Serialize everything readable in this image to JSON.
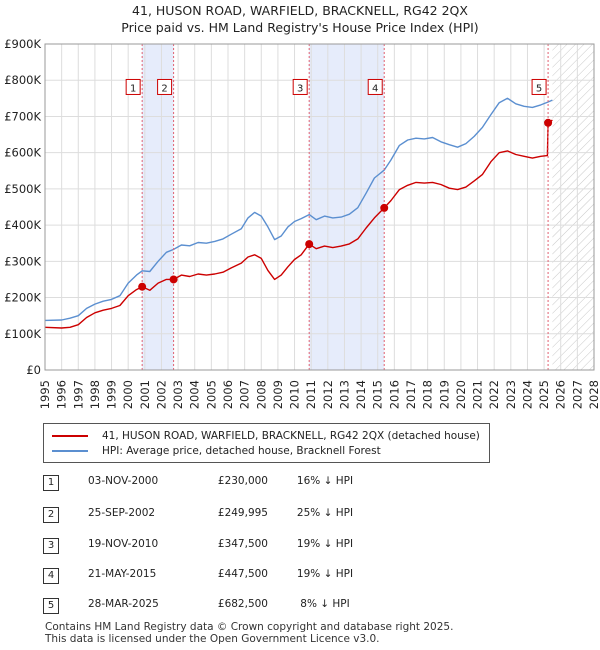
{
  "title": "41, HUSON ROAD, WARFIELD, BRACKNELL, RG42 2QX",
  "subtitle": "Price paid vs. HM Land Registry's House Price Index (HPI)",
  "legend": {
    "property": "41, HUSON ROAD, WARFIELD, BRACKNELL, RG42 2QX (detached house)",
    "hpi": "HPI: Average price, detached house, Bracknell Forest"
  },
  "sales": [
    {
      "num": "1",
      "date": "03-NOV-2000",
      "price": "£230,000",
      "hpi": "16% ↓ HPI"
    },
    {
      "num": "2",
      "date": "25-SEP-2002",
      "price": "£249,995",
      "hpi": "25% ↓ HPI"
    },
    {
      "num": "3",
      "date": "19-NOV-2010",
      "price": "£347,500",
      "hpi": "19% ↓ HPI"
    },
    {
      "num": "4",
      "date": "21-MAY-2015",
      "price": "£447,500",
      "hpi": "19% ↓ HPI"
    },
    {
      "num": "5",
      "date": "28-MAR-2025",
      "price": "£682,500",
      "hpi": "8% ↓ HPI"
    }
  ],
  "footer": {
    "line1": "Contains HM Land Registry data © Crown copyright and database right 2025.",
    "line2": "This data is licensed under the Open Government Licence v3.0."
  },
  "colors": {
    "property": "#cc0000",
    "hpi": "#5b8fd0",
    "band": "#e6ecfb",
    "grid": "#dddddd",
    "marker_line": "#e06070",
    "projection_hatch": "#c9c9c9"
  },
  "chart_data": {
    "type": "line",
    "title": "41, HUSON ROAD, WARFIELD, BRACKNELL, RG42 2QX",
    "subtitle": "Price paid vs. HM Land Registry's House Price Index (HPI)",
    "xlim": [
      1995,
      2028
    ],
    "ylim": [
      0,
      900000
    ],
    "x_ticks": [
      "1995",
      "1996",
      "1997",
      "1998",
      "1999",
      "2000",
      "2001",
      "2002",
      "2003",
      "2004",
      "2005",
      "2006",
      "2007",
      "2008",
      "2009",
      "2010",
      "2011",
      "2012",
      "2013",
      "2014",
      "2015",
      "2016",
      "2017",
      "2018",
      "2019",
      "2020",
      "2021",
      "2022",
      "2023",
      "2024",
      "2025",
      "2026",
      "2027",
      "2028"
    ],
    "y_ticks": [
      {
        "value": 0,
        "label": "£0"
      },
      {
        "value": 100000,
        "label": "£100K"
      },
      {
        "value": 200000,
        "label": "£200K"
      },
      {
        "value": 300000,
        "label": "£300K"
      },
      {
        "value": 400000,
        "label": "£400K"
      },
      {
        "value": 500000,
        "label": "£500K"
      },
      {
        "value": 600000,
        "label": "£600K"
      },
      {
        "value": 700000,
        "label": "£700K"
      },
      {
        "value": 800000,
        "label": "£800K"
      },
      {
        "value": 900000,
        "label": "£900K"
      }
    ],
    "grid": true,
    "shaded_periods": [
      [
        2000.84,
        2002.73
      ],
      [
        2010.88,
        2015.39
      ]
    ],
    "projection_from": 2025.5,
    "series": [
      {
        "name": "41, HUSON ROAD, WARFIELD, BRACKNELL, RG42 2QX (detached house)",
        "points": [
          [
            1995.0,
            118000
          ],
          [
            1996.0,
            116000
          ],
          [
            1996.5,
            118000
          ],
          [
            1997.0,
            125000
          ],
          [
            1997.5,
            145000
          ],
          [
            1998.0,
            158000
          ],
          [
            1998.5,
            165000
          ],
          [
            1999.0,
            170000
          ],
          [
            1999.5,
            178000
          ],
          [
            2000.0,
            205000
          ],
          [
            2000.5,
            222000
          ],
          [
            2000.84,
            230000
          ],
          [
            2001.3,
            220000
          ],
          [
            2001.8,
            240000
          ],
          [
            2002.3,
            250000
          ],
          [
            2002.73,
            249995
          ],
          [
            2003.2,
            262000
          ],
          [
            2003.7,
            258000
          ],
          [
            2004.2,
            265000
          ],
          [
            2004.7,
            262000
          ],
          [
            2005.2,
            265000
          ],
          [
            2005.7,
            270000
          ],
          [
            2006.2,
            282000
          ],
          [
            2006.8,
            295000
          ],
          [
            2007.2,
            312000
          ],
          [
            2007.6,
            318000
          ],
          [
            2008.0,
            308000
          ],
          [
            2008.4,
            275000
          ],
          [
            2008.8,
            250000
          ],
          [
            2009.2,
            262000
          ],
          [
            2009.6,
            285000
          ],
          [
            2010.0,
            305000
          ],
          [
            2010.4,
            318000
          ],
          [
            2010.88,
            347500
          ],
          [
            2011.3,
            335000
          ],
          [
            2011.8,
            342000
          ],
          [
            2012.3,
            338000
          ],
          [
            2012.8,
            342000
          ],
          [
            2013.3,
            348000
          ],
          [
            2013.8,
            362000
          ],
          [
            2014.3,
            392000
          ],
          [
            2014.8,
            420000
          ],
          [
            2015.39,
            447500
          ],
          [
            2015.8,
            468000
          ],
          [
            2016.3,
            498000
          ],
          [
            2016.8,
            510000
          ],
          [
            2017.3,
            518000
          ],
          [
            2017.8,
            516000
          ],
          [
            2018.3,
            518000
          ],
          [
            2018.8,
            512000
          ],
          [
            2019.3,
            502000
          ],
          [
            2019.8,
            498000
          ],
          [
            2020.3,
            505000
          ],
          [
            2020.8,
            522000
          ],
          [
            2021.3,
            540000
          ],
          [
            2021.8,
            575000
          ],
          [
            2022.3,
            600000
          ],
          [
            2022.8,
            605000
          ],
          [
            2023.3,
            595000
          ],
          [
            2023.8,
            590000
          ],
          [
            2024.3,
            585000
          ],
          [
            2024.8,
            590000
          ],
          [
            2025.2,
            592000
          ],
          [
            2025.24,
            682500
          ],
          [
            2025.5,
            690000
          ]
        ]
      },
      {
        "name": "HPI: Average price, detached house, Bracknell Forest",
        "points": [
          [
            1995.0,
            137000
          ],
          [
            1996.0,
            138000
          ],
          [
            1996.5,
            143000
          ],
          [
            1997.0,
            150000
          ],
          [
            1997.5,
            170000
          ],
          [
            1998.0,
            182000
          ],
          [
            1998.5,
            190000
          ],
          [
            1999.0,
            195000
          ],
          [
            1999.5,
            205000
          ],
          [
            2000.0,
            240000
          ],
          [
            2000.5,
            262000
          ],
          [
            2000.84,
            274000
          ],
          [
            2001.3,
            272000
          ],
          [
            2001.8,
            300000
          ],
          [
            2002.3,
            325000
          ],
          [
            2002.73,
            333000
          ],
          [
            2003.2,
            345000
          ],
          [
            2003.7,
            343000
          ],
          [
            2004.2,
            352000
          ],
          [
            2004.7,
            350000
          ],
          [
            2005.2,
            355000
          ],
          [
            2005.7,
            362000
          ],
          [
            2006.2,
            375000
          ],
          [
            2006.8,
            390000
          ],
          [
            2007.2,
            420000
          ],
          [
            2007.6,
            435000
          ],
          [
            2008.0,
            425000
          ],
          [
            2008.4,
            395000
          ],
          [
            2008.8,
            360000
          ],
          [
            2009.2,
            370000
          ],
          [
            2009.6,
            395000
          ],
          [
            2010.0,
            410000
          ],
          [
            2010.4,
            418000
          ],
          [
            2010.88,
            429000
          ],
          [
            2011.3,
            415000
          ],
          [
            2011.8,
            425000
          ],
          [
            2012.3,
            420000
          ],
          [
            2012.8,
            422000
          ],
          [
            2013.3,
            430000
          ],
          [
            2013.8,
            448000
          ],
          [
            2014.3,
            488000
          ],
          [
            2014.8,
            530000
          ],
          [
            2015.39,
            552000
          ],
          [
            2015.8,
            580000
          ],
          [
            2016.3,
            620000
          ],
          [
            2016.8,
            635000
          ],
          [
            2017.3,
            640000
          ],
          [
            2017.8,
            638000
          ],
          [
            2018.3,
            642000
          ],
          [
            2018.8,
            630000
          ],
          [
            2019.3,
            622000
          ],
          [
            2019.8,
            615000
          ],
          [
            2020.3,
            625000
          ],
          [
            2020.8,
            645000
          ],
          [
            2021.3,
            670000
          ],
          [
            2021.8,
            705000
          ],
          [
            2022.3,
            738000
          ],
          [
            2022.8,
            750000
          ],
          [
            2023.3,
            735000
          ],
          [
            2023.8,
            728000
          ],
          [
            2024.3,
            725000
          ],
          [
            2024.8,
            732000
          ],
          [
            2025.24,
            740000
          ],
          [
            2025.5,
            745000
          ]
        ]
      }
    ],
    "sales": [
      {
        "label": "1",
        "x": 2000.84,
        "y": 230000
      },
      {
        "label": "2",
        "x": 2002.73,
        "y": 249995
      },
      {
        "label": "3",
        "x": 2010.88,
        "y": 347500
      },
      {
        "label": "4",
        "x": 2015.39,
        "y": 447500
      },
      {
        "label": "5",
        "x": 2025.24,
        "y": 682500
      }
    ],
    "sale_label_value": 780000
  }
}
